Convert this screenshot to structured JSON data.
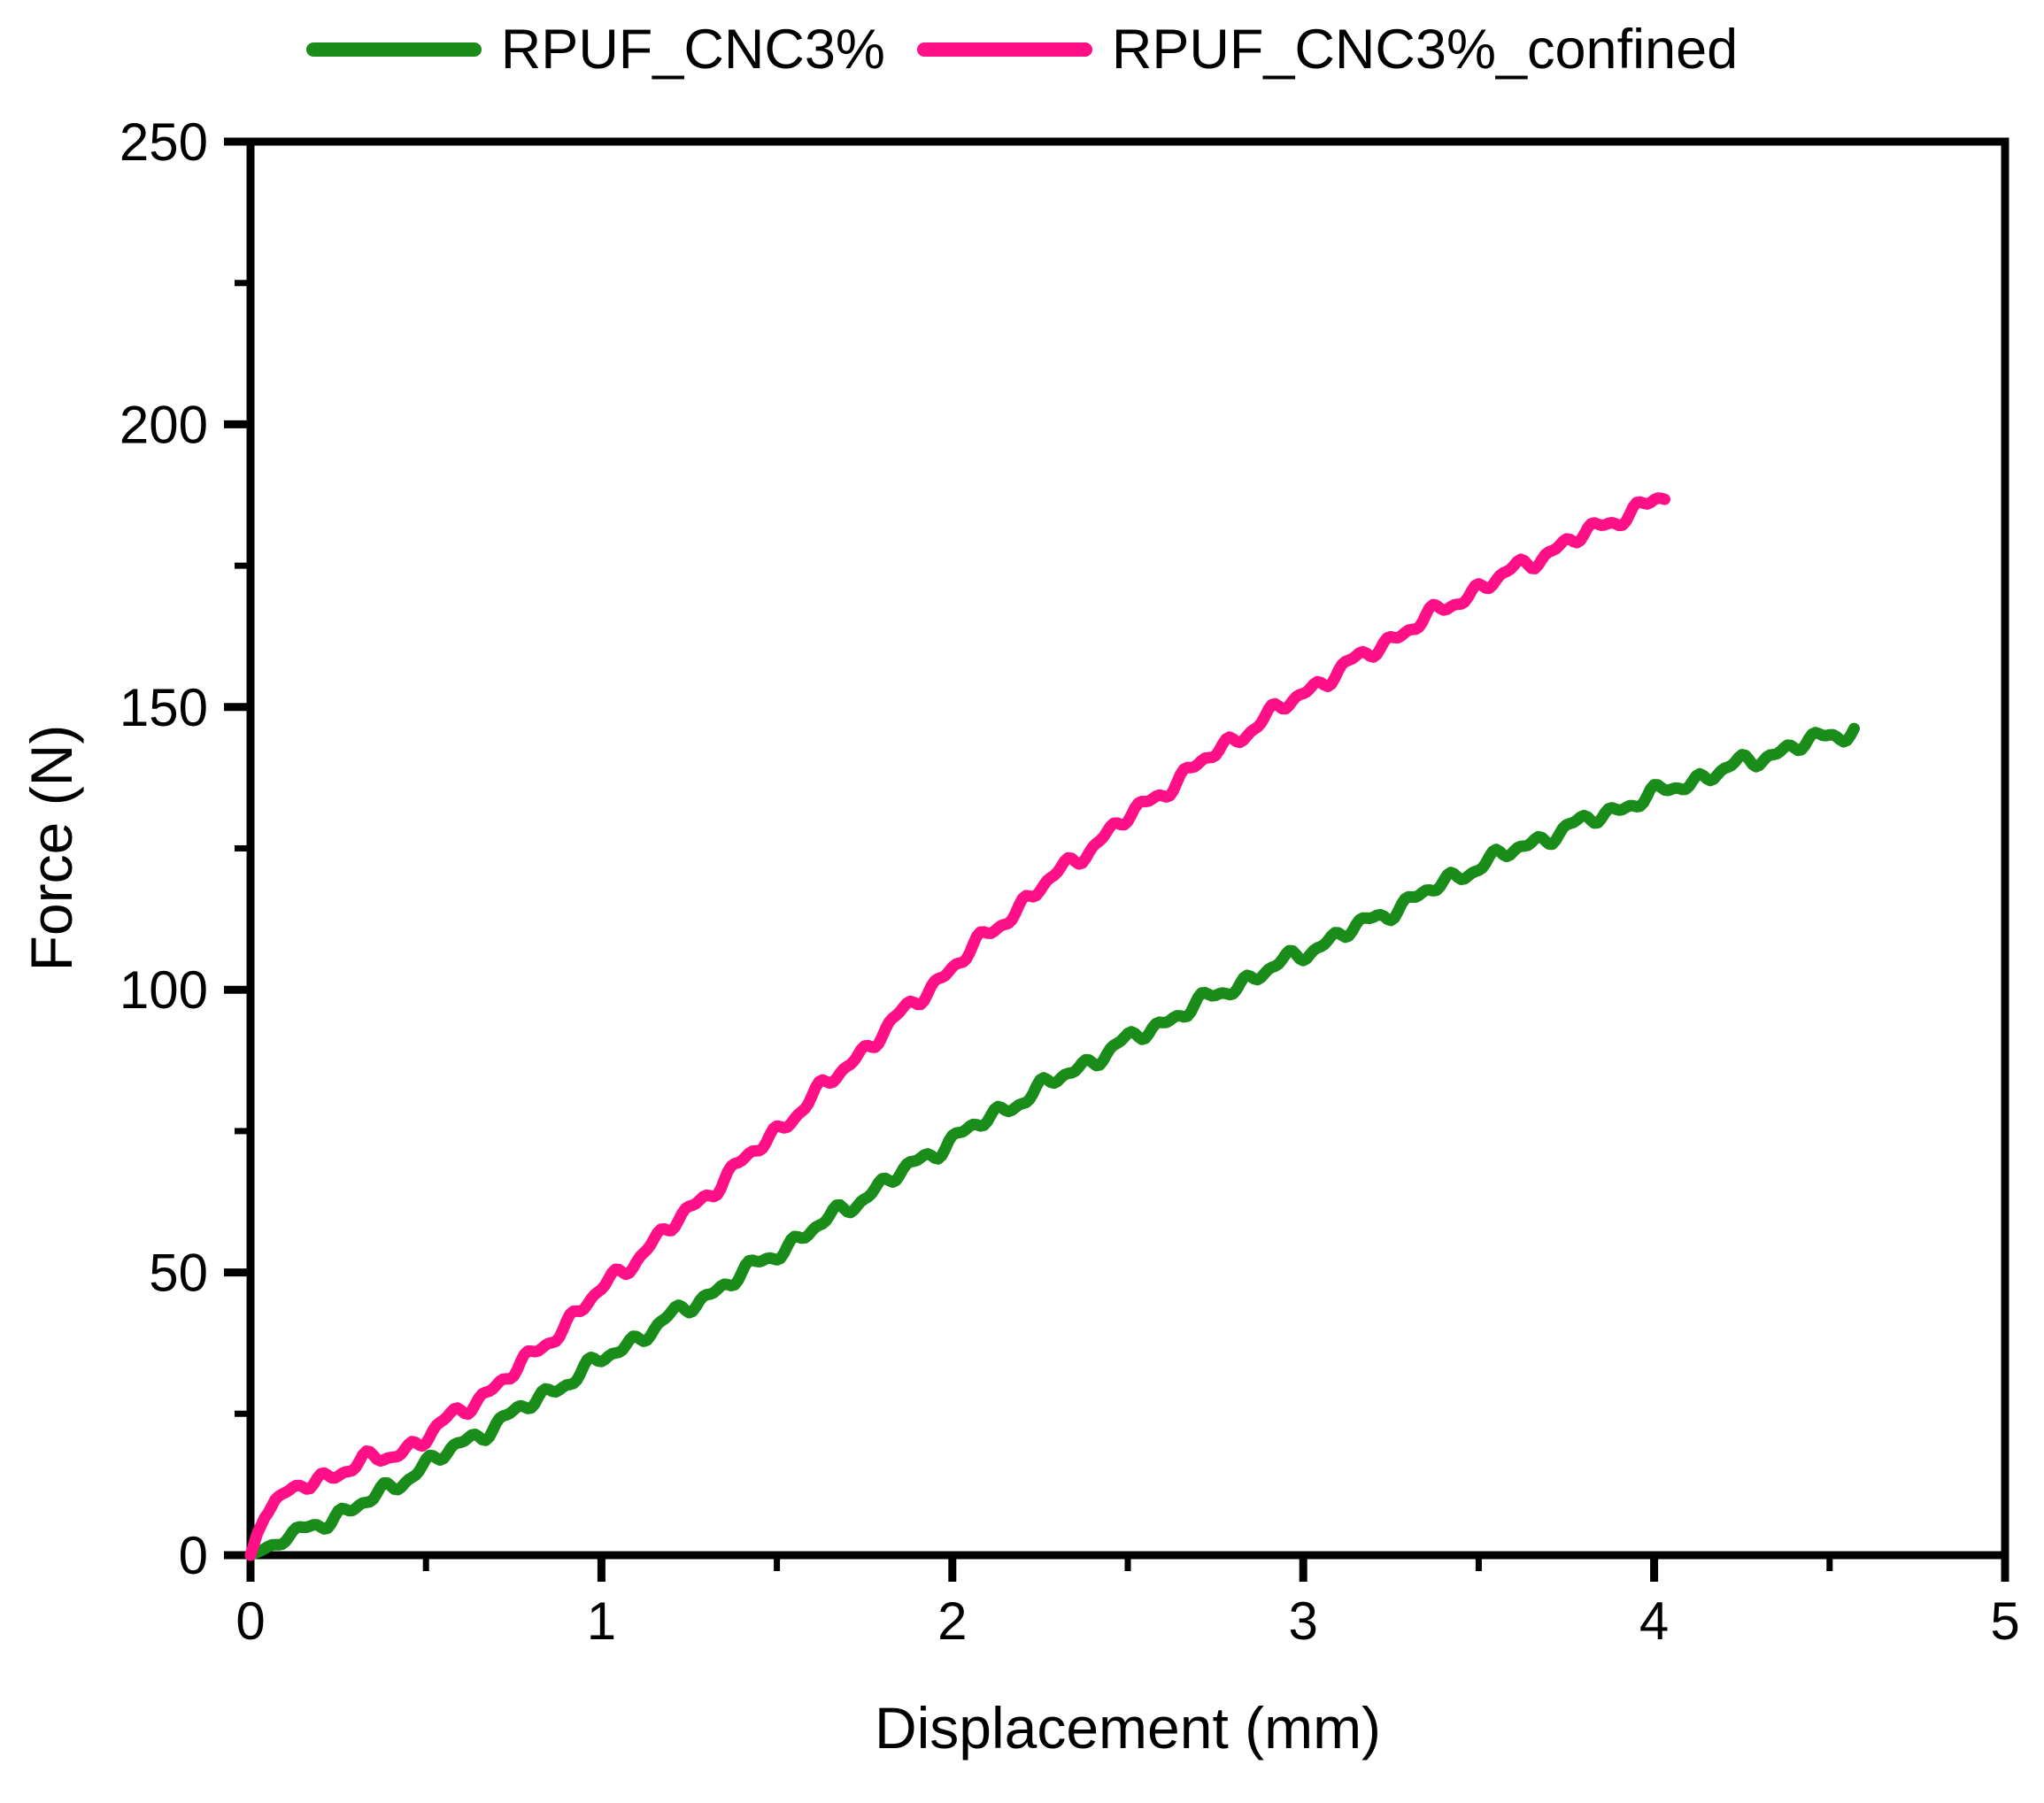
{
  "figure": {
    "background": "#ffffff",
    "frame_color": "#000000",
    "legend": {
      "position": "top-center",
      "items": [
        {
          "label": "RPUF_CNC3%",
          "color": "#1a8c1a"
        },
        {
          "label": "RPUF_CNC3%_confined",
          "color": "#ff1086"
        }
      ]
    }
  },
  "chart_data": {
    "type": "line",
    "title": "",
    "xlabel": "Displacement (mm)",
    "ylabel": "Force (N)",
    "xlim": [
      0,
      5
    ],
    "ylim": [
      0,
      250
    ],
    "x_major_ticks": [
      0,
      1,
      2,
      3,
      4,
      5
    ],
    "x_minor_step": 0.5,
    "y_major_ticks": [
      0,
      50,
      100,
      150,
      200,
      250
    ],
    "y_minor_step": 25,
    "grid": false,
    "legend_position": "top",
    "series": [
      {
        "name": "RPUF_CNC3%",
        "color": "#1a8c1a",
        "x": [
          0,
          0.1,
          0.2,
          0.3,
          0.35,
          0.4,
          0.45,
          0.5,
          0.75,
          1.0,
          1.25,
          1.5,
          1.75,
          2.0,
          2.25,
          2.5,
          2.75,
          3.0,
          3.25,
          3.5,
          3.75,
          4.0,
          4.25,
          4.45,
          4.57
        ],
        "y": [
          0,
          2.8,
          5.8,
          8.5,
          10,
          12,
          14,
          16,
          25,
          34.5,
          44,
          53.5,
          63.5,
          73.5,
          82.5,
          91,
          99,
          106.5,
          114,
          122,
          128.5,
          134.5,
          140,
          144,
          146
        ]
      },
      {
        "name": "RPUF_CNC3%_confined",
        "color": "#ff1086",
        "x": [
          0,
          0.02,
          0.04,
          0.07,
          0.12,
          0.2,
          0.28,
          0.35,
          0.4,
          0.45,
          0.5,
          0.6,
          0.7,
          0.8,
          0.9,
          1.0,
          1.25,
          1.5,
          1.75,
          2.0,
          2.25,
          2.5,
          2.75,
          3.0,
          3.25,
          3.5,
          3.75,
          3.9,
          4.0,
          4.03
        ],
        "y": [
          0,
          4,
          7,
          9.5,
          11.5,
          13.5,
          15.5,
          17,
          17.5,
          19,
          21,
          25.5,
          30,
          35,
          41,
          47,
          61,
          75,
          89.5,
          104,
          118,
          130.5,
          142,
          152.5,
          162,
          171,
          179,
          183.5,
          186.5,
          187
        ]
      }
    ]
  }
}
